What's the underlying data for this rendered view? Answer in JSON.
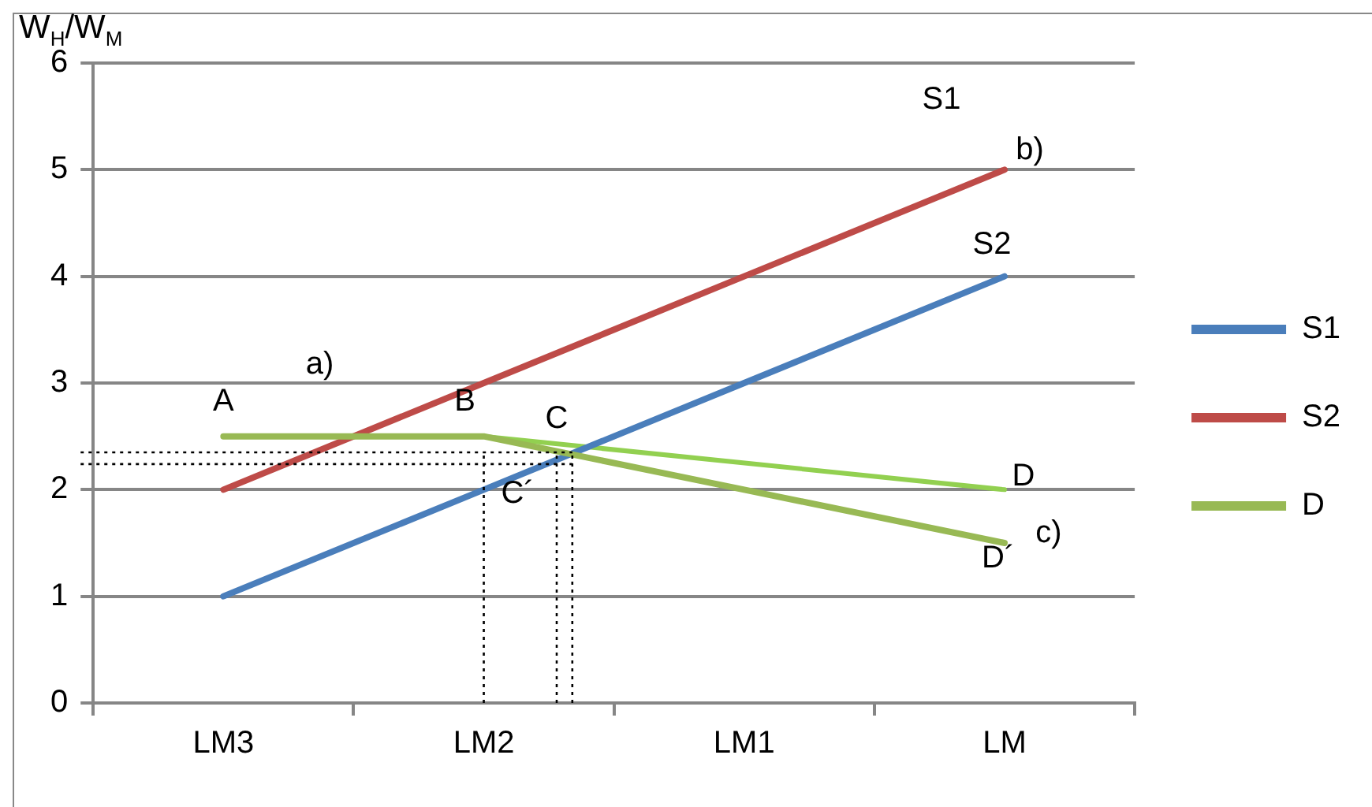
{
  "chart_data": {
    "type": "line",
    "ylabel": "W$_{H}$/W$_{M}$",
    "categories": [
      "LM3",
      "LM2",
      "LM1",
      "LM"
    ],
    "ylim": [
      0,
      6
    ],
    "yticks": [
      0,
      1,
      2,
      3,
      4,
      5,
      6
    ],
    "grid": "y",
    "legend": "right",
    "marker": "none",
    "series": [
      {
        "name": "S1",
        "color": "#4a7ebb",
        "values": [
          1,
          2,
          3,
          4
        ]
      },
      {
        "name": "S2",
        "color": "#be4b48",
        "values": [
          2,
          3,
          4,
          5
        ]
      },
      {
        "name": "D",
        "color": "#98b954",
        "values": [
          2.5,
          2.5,
          2,
          1.5
        ]
      },
      {
        "color": "#92d050",
        "values": [
          null,
          2.5,
          null,
          2.0
        ]
      }
    ],
    "ref_lines": [
      {
        "axis": "y",
        "value": 2.35,
        "color": "#000000",
        "line_style": "dotted"
      },
      {
        "axis": "y",
        "value": 2.24,
        "color": "#000000",
        "line_style": "dotted"
      },
      {
        "axis": "x",
        "value": "LM2",
        "color": "#000000",
        "line_style": "dotted"
      }
    ],
    "annotations": [
      {
        "text": "A",
        "x": "LM3",
        "y": 2.5
      },
      "a)",
      {
        "text": "B",
        "x": "LM2",
        "y": 2.5
      },
      "C",
      "C´",
      {
        "text": "S1",
        "x": "LM",
        "y": 5
      },
      {
        "text": "b)",
        "x": "LM",
        "y": 5
      },
      {
        "text": "S2",
        "x": "LM",
        "y": 4
      },
      {
        "text": "D",
        "x": "LM",
        "y": 2.0
      },
      {
        "text": "D´",
        "x": "LM",
        "y": 1.5
      },
      {
        "text": "c)",
        "x": "LM",
        "y": 1.5
      }
    ]
  }
}
